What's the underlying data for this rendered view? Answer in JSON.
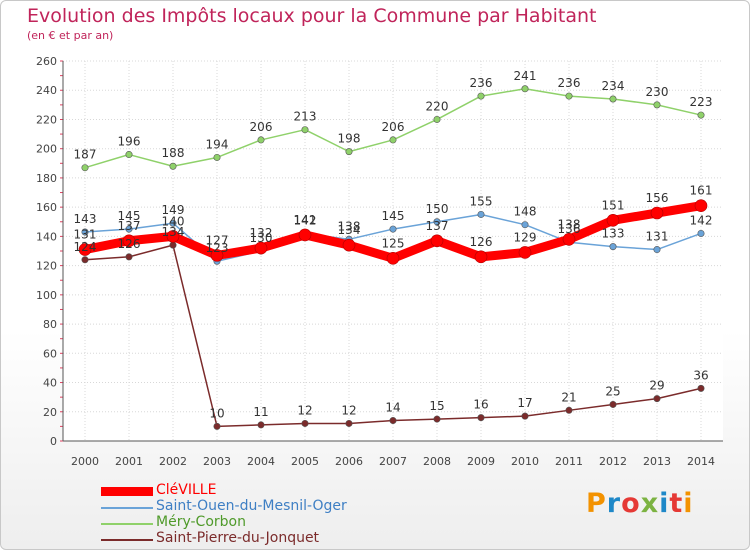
{
  "header": {
    "title": "Evolution des Impôts locaux pour la Commune par Habitant",
    "subtitle": "(en € et par an)"
  },
  "brand": {
    "name": "Proxiti",
    "letters": [
      "P",
      "r",
      "o",
      "x",
      "i",
      "t",
      "i"
    ],
    "colors": [
      "#f39200",
      "#1e88c8",
      "#e53935",
      "#7cb342",
      "#1e88c8",
      "#e53935",
      "#f39200"
    ]
  },
  "chart_data": {
    "type": "line",
    "title": "Evolution des Impôts locaux pour la Commune par Habitant",
    "subtitle": "(en € et par an)",
    "xlabel": "",
    "ylabel": "",
    "x": [
      "2000",
      "2001",
      "2002",
      "2003",
      "2004",
      "2005",
      "2006",
      "2007",
      "2008",
      "2009",
      "2010",
      "2011",
      "2012",
      "2013",
      "2014"
    ],
    "ylim": [
      0,
      260
    ],
    "yticks": [
      "0",
      "20",
      "40",
      "60",
      "80",
      "100",
      "120",
      "140",
      "160",
      "180",
      "200",
      "220",
      "240",
      "260"
    ],
    "grid": true,
    "legend_position": "bottom-left",
    "series": [
      {
        "name": "Méry-Corbon",
        "color": "#8fd16a",
        "values": [
          187,
          196,
          188,
          194,
          206,
          213,
          198,
          206,
          220,
          236,
          241,
          236,
          234,
          230,
          223
        ],
        "labels": [
          "187",
          "196",
          "188",
          "194",
          "206",
          "213",
          "198",
          "206",
          "220",
          "236",
          "241",
          "236",
          "234",
          "230",
          "223"
        ]
      },
      {
        "name": "Saint-Ouen-du-Mesnil-Oger",
        "color": "#6aa3d8",
        "values": [
          143,
          145,
          149,
          123,
          130,
          142,
          138,
          145,
          150,
          155,
          148,
          136,
          133,
          131,
          142
        ],
        "labels": [
          "143",
          "145",
          "149",
          "123",
          "130",
          "142",
          "138",
          "145",
          "150",
          "155",
          "148",
          "136",
          "133",
          "131",
          "142"
        ]
      },
      {
        "name": "Saint-Pierre-du-Jonquet",
        "color": "#7b2b2b",
        "values": [
          124,
          126,
          134,
          10,
          11,
          12,
          12,
          14,
          15,
          16,
          17,
          21,
          25,
          29,
          36
        ],
        "labels": [
          "124",
          "126",
          "134",
          "10",
          "11",
          "12",
          "12",
          "14",
          "15",
          "16",
          "17",
          "21",
          "25",
          "29",
          "36"
        ]
      },
      {
        "name": "CléVILLE",
        "color": "#ff0000",
        "values": [
          131,
          137,
          140,
          127,
          132,
          141,
          134,
          125,
          137,
          126,
          129,
          138,
          151,
          156,
          161
        ],
        "labels": [
          "131",
          "137",
          "140",
          "127",
          "132",
          "141",
          "134",
          "125",
          "137",
          "126",
          "129",
          "138",
          "151",
          "156",
          "161"
        ]
      }
    ]
  }
}
